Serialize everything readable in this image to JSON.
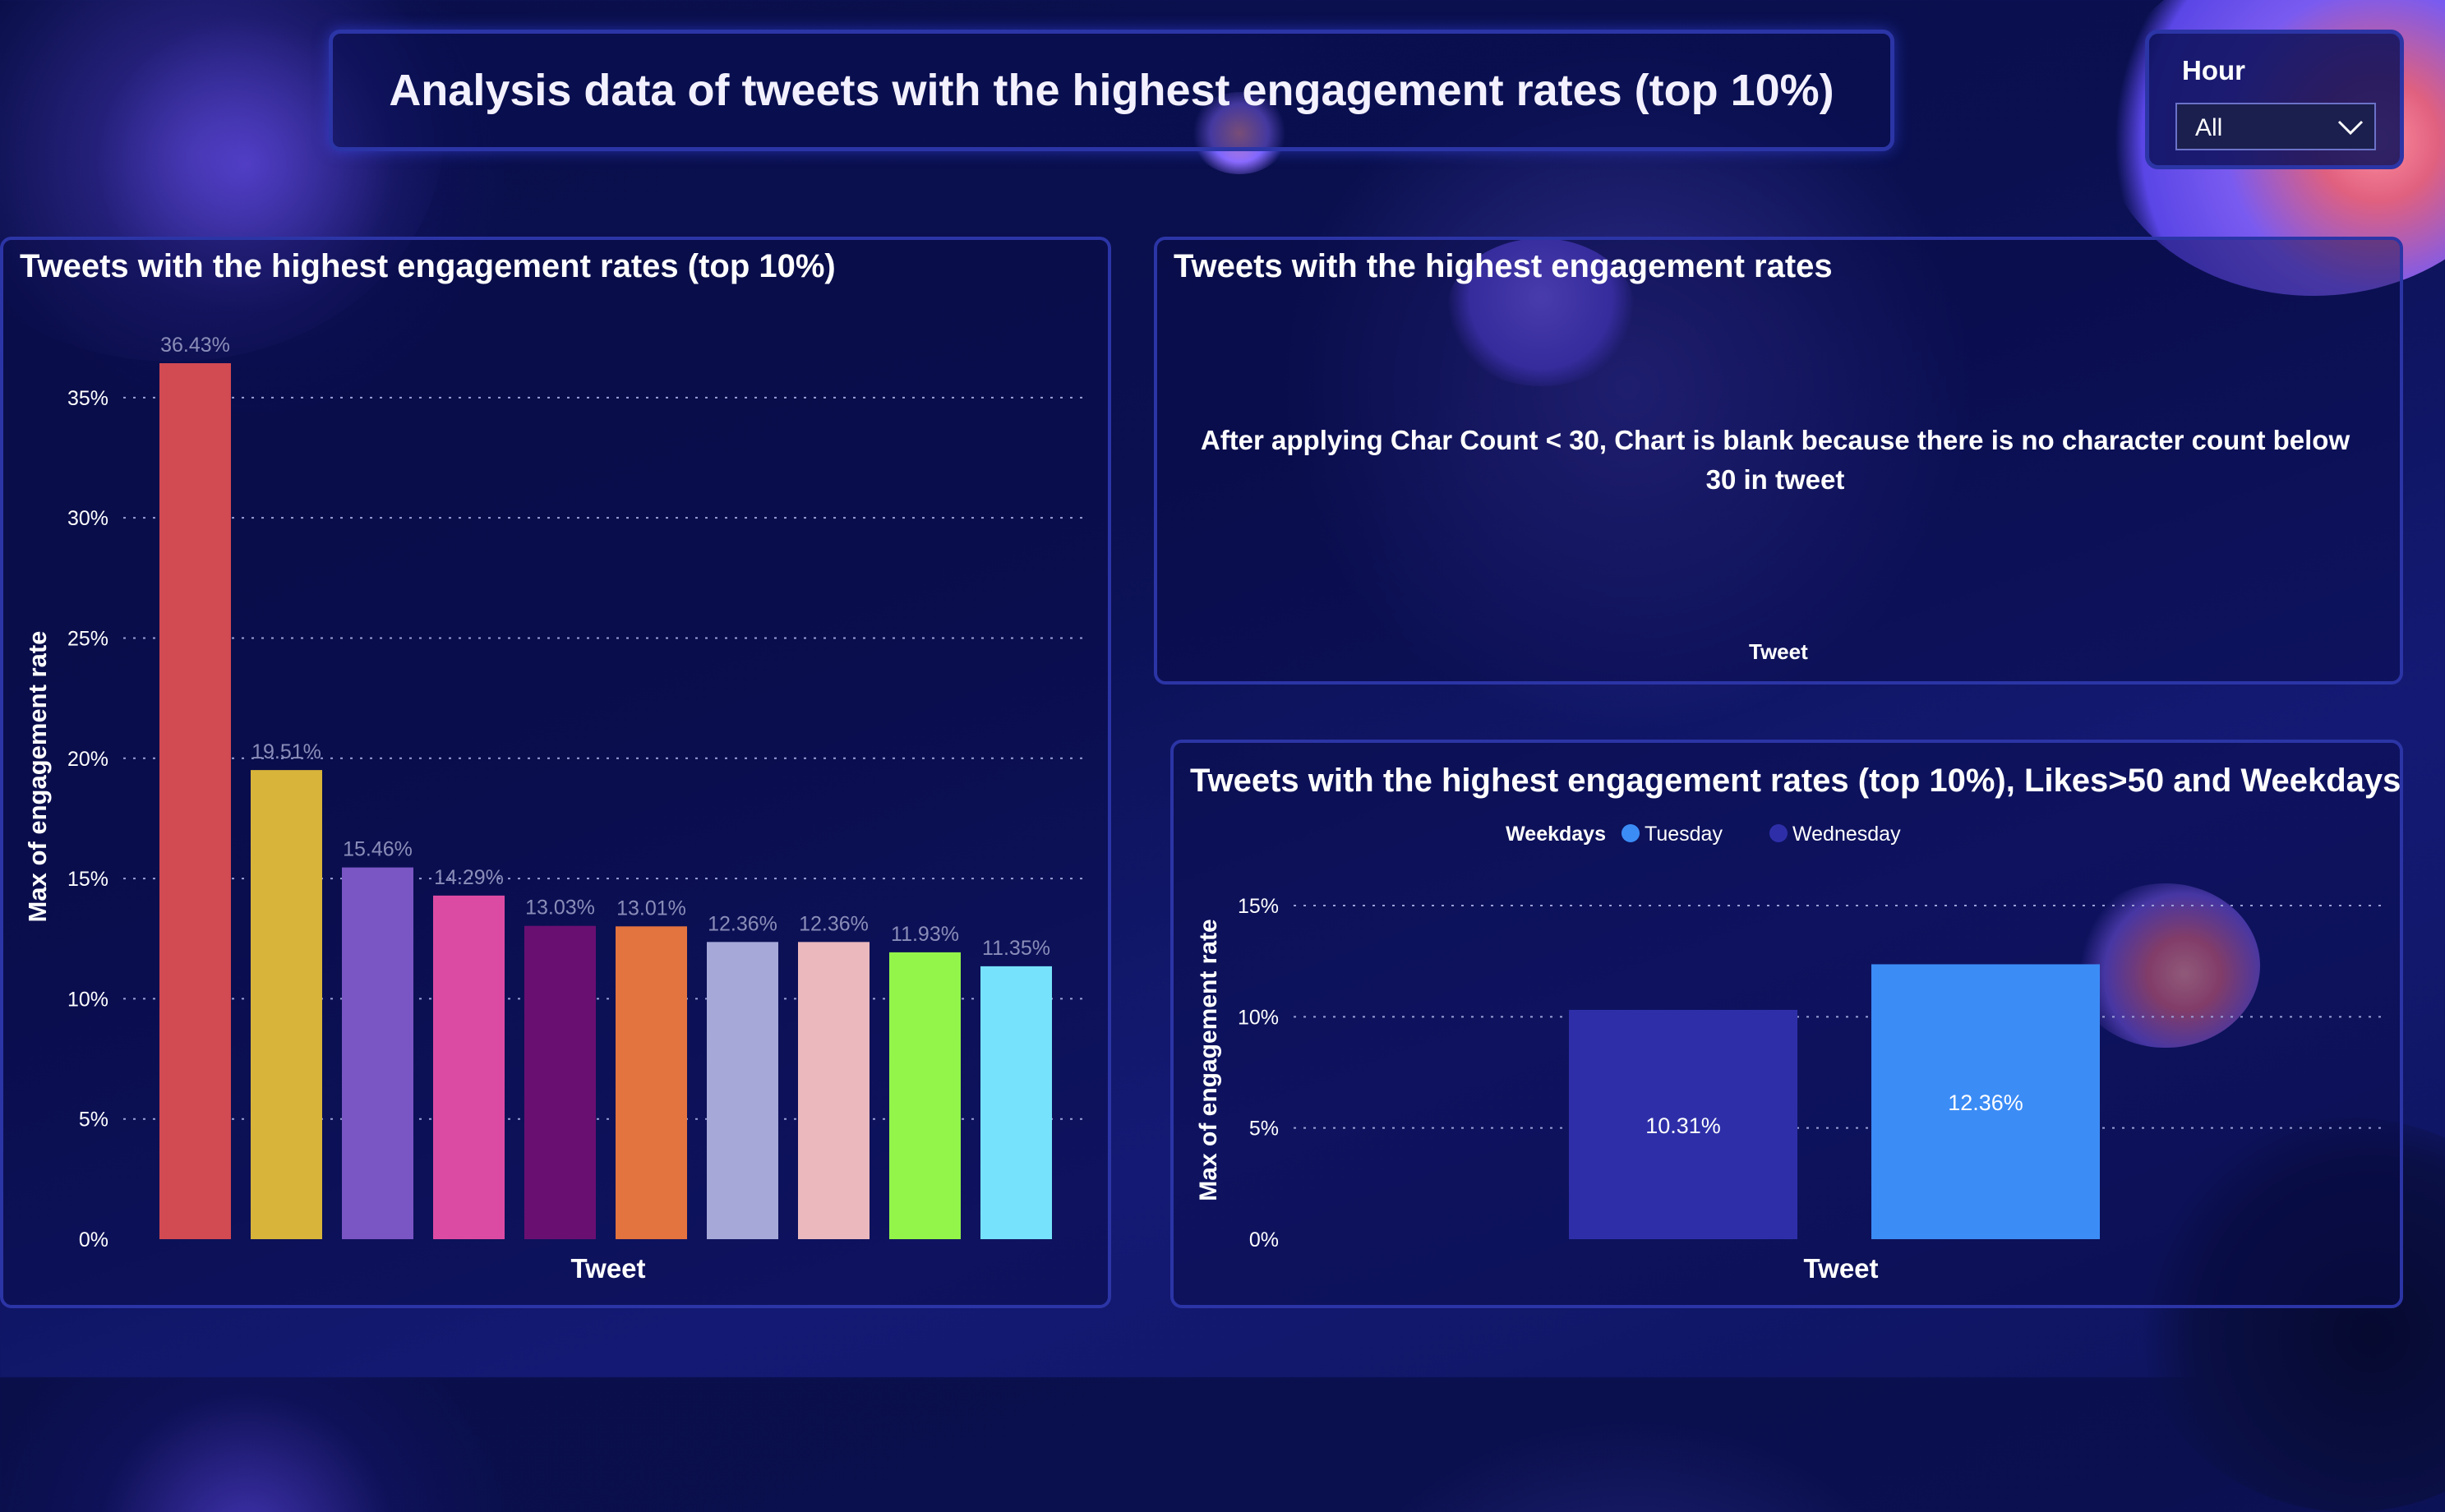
{
  "header": {
    "title": "Analysis data of tweets with the highest engagement rates (top 10%)"
  },
  "slicer": {
    "label": "Hour",
    "value": "All",
    "icon": "chevron-down-icon"
  },
  "panels": {
    "left_title": "Tweets with the highest engagement rates (top 10%)",
    "top_right_title": "Tweets with the highest engagement rates",
    "top_right_note": "After applying Char Count < 30, Chart is blank because there is no character count below 30 in tweet",
    "top_right_axis": "Tweet",
    "bottom_right_title": "Tweets with the highest engagement rates (top 10%), Likes>50 and Weekdays"
  },
  "chart_data": [
    {
      "type": "bar",
      "title": "Tweets with the highest engagement rates (top 10%)",
      "xlabel": "Tweet",
      "ylabel": "Max of engagement rate",
      "ylim": [
        0,
        36.43
      ],
      "yticks": [
        0,
        5,
        10,
        15,
        20,
        25,
        30,
        35
      ],
      "ytick_labels": [
        "0%",
        "5%",
        "10%",
        "15%",
        "20%",
        "25%",
        "30%",
        "35%"
      ],
      "grid": true,
      "values": [
        36.43,
        19.51,
        15.46,
        14.29,
        13.03,
        13.01,
        12.36,
        12.36,
        11.93,
        11.35
      ],
      "value_labels": [
        "36.43%",
        "19.51%",
        "15.46%",
        "14.29%",
        "13.03%",
        "13.01%",
        "12.36%",
        "12.36%",
        "11.93%",
        "11.35%"
      ],
      "colors": [
        "#d24a52",
        "#d8b43a",
        "#7a55c4",
        "#dc4ba3",
        "#6a0f72",
        "#e3733f",
        "#a6a9d8",
        "#ebb8bd",
        "#93f54a",
        "#77e2fb"
      ]
    },
    {
      "type": "bar",
      "title": "Tweets with the highest engagement rates (top 10%), Likes>50 and Weekdays",
      "xlabel": "Tweet",
      "ylabel": "Max of engagement rate",
      "ylim": [
        0,
        15
      ],
      "yticks": [
        0,
        5,
        10,
        15
      ],
      "ytick_labels": [
        "0%",
        "5%",
        "10%",
        "15%"
      ],
      "grid": true,
      "legend": {
        "title": "Weekdays",
        "placement": "top-center"
      },
      "series": [
        {
          "name": "Wednesday",
          "value": 10.31,
          "label": "10.31%",
          "color": "#2e2fa8"
        },
        {
          "name": "Tuesday",
          "value": 12.36,
          "label": "12.36%",
          "color": "#3c8cf6"
        }
      ],
      "legend_order": [
        "Tuesday",
        "Wednesday"
      ]
    }
  ]
}
